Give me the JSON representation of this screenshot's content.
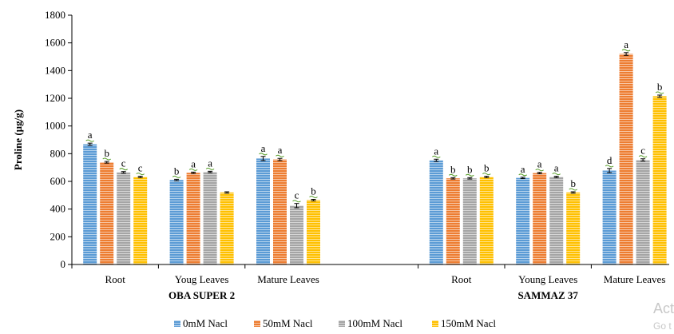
{
  "chart_data": {
    "type": "bar",
    "ylabel": "Proline  (µg/g)",
    "ylim": [
      0,
      1800
    ],
    "yticks": [
      0,
      200,
      400,
      600,
      800,
      1000,
      1200,
      1400,
      1600,
      1800
    ],
    "grid": false,
    "legend_position": "bottom",
    "groups": [
      {
        "label": "OBA SUPER 2",
        "categories": [
          "Root",
          "Youg Leaves",
          "Mature Leaves"
        ]
      },
      {
        "label": "SAMMAZ 37",
        "categories": [
          "Root",
          "Young Leaves",
          "Mature Leaves"
        ]
      }
    ],
    "series": [
      {
        "name": "0mM Nacl",
        "color": "#5b9bd5",
        "values": [
          868,
          610,
          765,
          752,
          625,
          678
        ],
        "errors": [
          8,
          5,
          15,
          8,
          5,
          15
        ],
        "letters": [
          "a",
          "b",
          "a",
          "a",
          "a",
          "d"
        ]
      },
      {
        "name": "50mM Nacl",
        "color": "#ed7d31",
        "values": [
          738,
          662,
          758,
          622,
          660,
          1520
        ],
        "errors": [
          6,
          5,
          8,
          5,
          5,
          10
        ],
        "letters": [
          "b",
          "a",
          "a",
          "b",
          "a",
          "a"
        ]
      },
      {
        "name": "100mM Nacl",
        "color": "#a5a5a5",
        "values": [
          665,
          668,
          425,
          622,
          632,
          755
        ],
        "errors": [
          6,
          5,
          15,
          5,
          5,
          8
        ],
        "letters": [
          "c",
          "a",
          "c",
          "b",
          "a",
          "c"
        ]
      },
      {
        "name": "150mM Nacl",
        "color": "#ffc000",
        "values": [
          632,
          520,
          465,
          632,
          520,
          1215
        ],
        "errors": [
          5,
          5,
          5,
          5,
          5,
          8
        ],
        "letters": [
          "c",
          "",
          "b",
          "b",
          "b",
          "b"
        ]
      }
    ]
  },
  "watermark": {
    "line1": "Act",
    "line2": "Go t"
  }
}
